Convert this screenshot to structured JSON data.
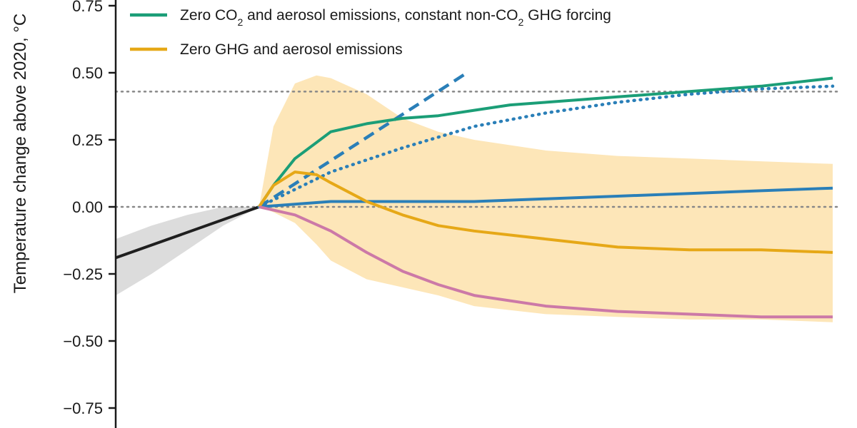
{
  "chart_data": {
    "type": "line",
    "ylabel": "Temperature change above 2020, °C",
    "ylim": [
      -0.82,
      0.82
    ],
    "yticks": [
      0.75,
      0.5,
      0.25,
      0.0,
      -0.25,
      -0.5,
      -0.75
    ],
    "ytick_labels": [
      "0.75",
      "0.50",
      "0.25",
      "0.00",
      "−0.25",
      "−0.50",
      "−0.75"
    ],
    "xlim": [
      2000,
      2100
    ],
    "grid": false,
    "legend": {
      "placement": "top-left",
      "entries": [
        {
          "color": "#1b9e77",
          "prefix": "Zero CO",
          "sub1": "2",
          "middle": " and aerosol emissions, constant non-CO",
          "sub2": "2",
          "suffix": " GHG forcing"
        },
        {
          "color": "#e6a817",
          "prefix": "Zero GHG and aerosol emissions",
          "sub1": "",
          "middle": "",
          "sub2": "",
          "suffix": ""
        }
      ]
    },
    "reference_lines": [
      {
        "y": 0.43,
        "style": "dotted",
        "color": "#888888"
      },
      {
        "y": 0.0,
        "style": "dotted",
        "color": "#888888"
      }
    ],
    "series": [
      {
        "color": "#1f1f1f",
        "style": "solid",
        "x": [
          2000,
          2020
        ],
        "y": [
          -0.19,
          0.0
        ]
      },
      {
        "color": "#2a7fb8",
        "style": "dashed",
        "x": [
          2020,
          2049
        ],
        "y": [
          0.0,
          0.5
        ]
      },
      {
        "color": "#2a7fb8",
        "style": "dotted",
        "x": [
          2020,
          2030,
          2040,
          2050,
          2060,
          2070,
          2080,
          2090,
          2100
        ],
        "y": [
          0.0,
          0.13,
          0.22,
          0.3,
          0.35,
          0.39,
          0.42,
          0.44,
          0.45
        ]
      },
      {
        "color": "#2a7fb8",
        "style": "solid",
        "x": [
          2020,
          2030,
          2040,
          2050,
          2060,
          2070,
          2080,
          2090,
          2100
        ],
        "y": [
          0.0,
          0.02,
          0.02,
          0.02,
          0.03,
          0.04,
          0.05,
          0.06,
          0.07
        ]
      },
      {
        "color": "#1b9e77",
        "style": "solid",
        "x": [
          2020,
          2022,
          2025,
          2028,
          2030,
          2035,
          2040,
          2045,
          2050,
          2055,
          2060,
          2065,
          2070,
          2080,
          2090,
          2100
        ],
        "y": [
          0.0,
          0.08,
          0.18,
          0.24,
          0.28,
          0.31,
          0.33,
          0.34,
          0.36,
          0.38,
          0.39,
          0.4,
          0.41,
          0.43,
          0.45,
          0.48
        ]
      },
      {
        "color": "#e6a817",
        "style": "solid",
        "x": [
          2020,
          2022,
          2025,
          2028,
          2030,
          2035,
          2040,
          2045,
          2050,
          2060,
          2070,
          2080,
          2090,
          2100
        ],
        "y": [
          0.0,
          0.08,
          0.13,
          0.12,
          0.09,
          0.02,
          -0.03,
          -0.07,
          -0.09,
          -0.12,
          -0.15,
          -0.16,
          -0.16,
          -0.17
        ]
      },
      {
        "color": "#cc79a7",
        "style": "solid",
        "x": [
          2020,
          2025,
          2030,
          2035,
          2040,
          2045,
          2050,
          2060,
          2070,
          2080,
          2090,
          2100
        ],
        "y": [
          0.0,
          -0.03,
          -0.09,
          -0.17,
          -0.24,
          -0.29,
          -0.33,
          -0.37,
          -0.39,
          -0.4,
          -0.41,
          -0.41
        ]
      }
    ],
    "bands": [
      {
        "color": "#fde6b8",
        "x": [
          2020,
          2022,
          2025,
          2028,
          2030,
          2035,
          2040,
          2045,
          2050,
          2060,
          2070,
          2080,
          2090,
          2100
        ],
        "upper": [
          0.0,
          0.3,
          0.46,
          0.49,
          0.48,
          0.42,
          0.33,
          0.28,
          0.25,
          0.21,
          0.19,
          0.18,
          0.17,
          0.16
        ],
        "lower": [
          0.0,
          -0.02,
          -0.06,
          -0.14,
          -0.2,
          -0.27,
          -0.3,
          -0.33,
          -0.37,
          -0.4,
          -0.41,
          -0.42,
          -0.42,
          -0.43
        ]
      },
      {
        "color": "#dcdcdc",
        "x": [
          2000,
          2005,
          2010,
          2015,
          2020
        ],
        "upper": [
          -0.12,
          -0.07,
          -0.03,
          0.0,
          0.0
        ],
        "lower": [
          -0.33,
          -0.25,
          -0.16,
          -0.07,
          0.0
        ]
      }
    ]
  }
}
